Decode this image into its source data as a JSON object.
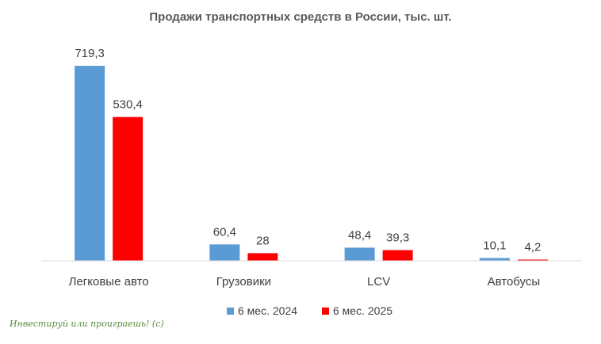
{
  "chart_data": {
    "type": "bar",
    "title": "Продажи транспортных средств в России, тыс. шт.",
    "categories": [
      "Легковые авто",
      "Грузовики",
      "LCV",
      "Автобусы"
    ],
    "series": [
      {
        "name": "6 мес. 2024",
        "color": "#5b9bd5",
        "values": [
          719.3,
          60.4,
          48.4,
          10.1
        ],
        "labels": [
          "719,3",
          "60,4",
          "48,4",
          "10,1"
        ]
      },
      {
        "name": "6 мес. 2025",
        "color": "#ff0000",
        "values": [
          530.4,
          28,
          39.3,
          4.2
        ],
        "labels": [
          "530,4",
          "28",
          "39,3",
          "4,2"
        ]
      }
    ],
    "ylim": [
      0,
      719.3
    ],
    "grid": false,
    "legend_position": "bottom"
  },
  "watermark": "Инвестируй или проиграешь! (c)"
}
